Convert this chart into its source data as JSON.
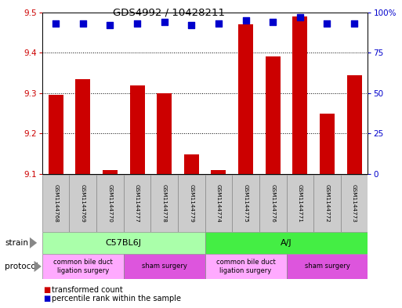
{
  "title": "GDS4992 / 10428211",
  "samples": [
    "GSM1144768",
    "GSM1144769",
    "GSM1144770",
    "GSM1144777",
    "GSM1144778",
    "GSM1144779",
    "GSM1144774",
    "GSM1144775",
    "GSM1144776",
    "GSM1144771",
    "GSM1144772",
    "GSM1144773"
  ],
  "transformed_counts": [
    9.295,
    9.335,
    9.11,
    9.32,
    9.3,
    9.148,
    9.11,
    9.47,
    9.39,
    9.49,
    9.25,
    9.345
  ],
  "percentile_ranks": [
    93,
    93,
    92,
    93,
    94,
    92,
    93,
    95,
    94,
    97,
    93,
    93
  ],
  "ylim_left": [
    9.1,
    9.5
  ],
  "ylim_right": [
    0,
    100
  ],
  "yticks_left": [
    9.1,
    9.2,
    9.3,
    9.4,
    9.5
  ],
  "yticks_right": [
    0,
    25,
    50,
    75,
    100
  ],
  "bar_color": "#cc0000",
  "dot_color": "#0000cc",
  "strain_groups": [
    {
      "label": "C57BL6J",
      "start": 0,
      "end": 6,
      "color": "#aaffaa"
    },
    {
      "label": "A/J",
      "start": 6,
      "end": 12,
      "color": "#44ee44"
    }
  ],
  "protocol_groups": [
    {
      "label": "common bile duct\nligation surgery",
      "start": 0,
      "end": 3,
      "color": "#ffaaff"
    },
    {
      "label": "sham surgery",
      "start": 3,
      "end": 6,
      "color": "#dd55dd"
    },
    {
      "label": "common bile duct\nligation surgery",
      "start": 6,
      "end": 9,
      "color": "#ffaaff"
    },
    {
      "label": "sham surgery",
      "start": 9,
      "end": 12,
      "color": "#dd55dd"
    }
  ],
  "legend_items": [
    {
      "label": "transformed count",
      "color": "#cc0000"
    },
    {
      "label": "percentile rank within the sample",
      "color": "#0000cc"
    }
  ],
  "left_axis_color": "#cc0000",
  "right_axis_color": "#0000cc",
  "background_color": "#ffffff",
  "bar_width": 0.55,
  "dot_size": 30,
  "sample_box_color": "#cccccc",
  "sample_box_edgecolor": "#888888"
}
